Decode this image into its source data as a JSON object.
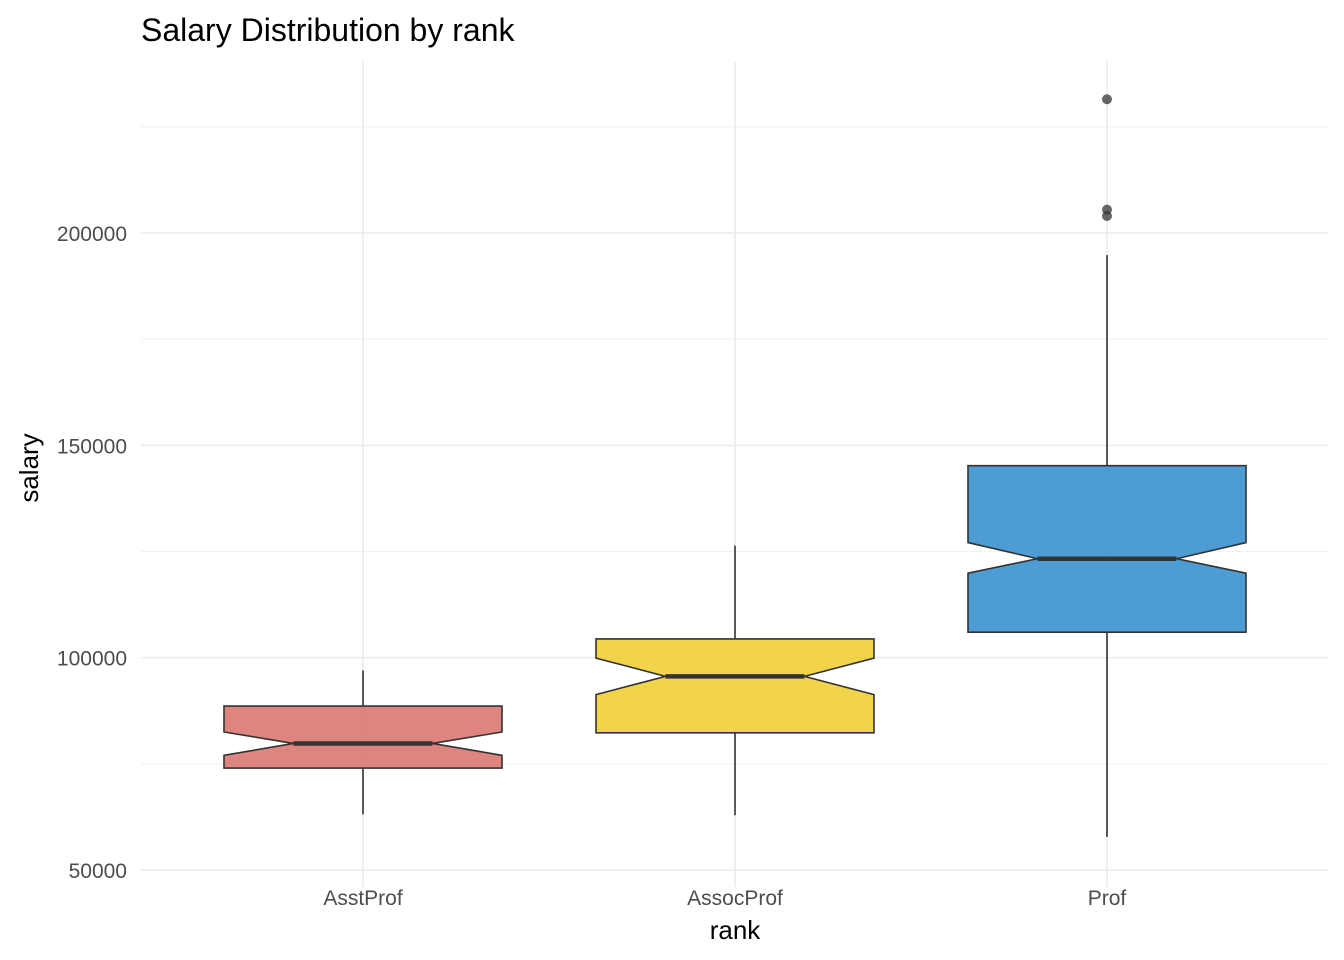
{
  "chart_data": {
    "type": "box",
    "title": "Salary Distribution by rank",
    "xlabel": "rank",
    "ylabel": "salary",
    "categories": [
      "AsstProf",
      "AssocProf",
      "Prof"
    ],
    "ylim": [
      48000,
      235000
    ],
    "yticks": [
      50000,
      100000,
      150000,
      200000
    ],
    "ytick_labels": [
      "50000",
      "100000",
      "150000",
      "200000"
    ],
    "grid": true,
    "notched": true,
    "boxes": [
      {
        "category": "AsstProf",
        "whisker_low": 63100,
        "q1": 74000,
        "notch_low": 77000,
        "median": 79800,
        "notch_high": 82500,
        "q3": 88600,
        "whisker_high": 97000,
        "outliers": [],
        "color": "#d9706a"
      },
      {
        "category": "AssocProf",
        "whisker_low": 62900,
        "q1": 82300,
        "notch_low": 91300,
        "median": 95600,
        "notch_high": 99900,
        "q3": 104400,
        "whisker_high": 126400,
        "outliers": [],
        "color": "#f0cd2a"
      },
      {
        "category": "Prof",
        "whisker_low": 57800,
        "q1": 106000,
        "notch_low": 119900,
        "median": 123300,
        "notch_high": 127100,
        "q3": 145200,
        "whisker_high": 194800,
        "outliers": [
          204000,
          205500,
          231500
        ],
        "color": "#2f8bcc"
      }
    ]
  }
}
